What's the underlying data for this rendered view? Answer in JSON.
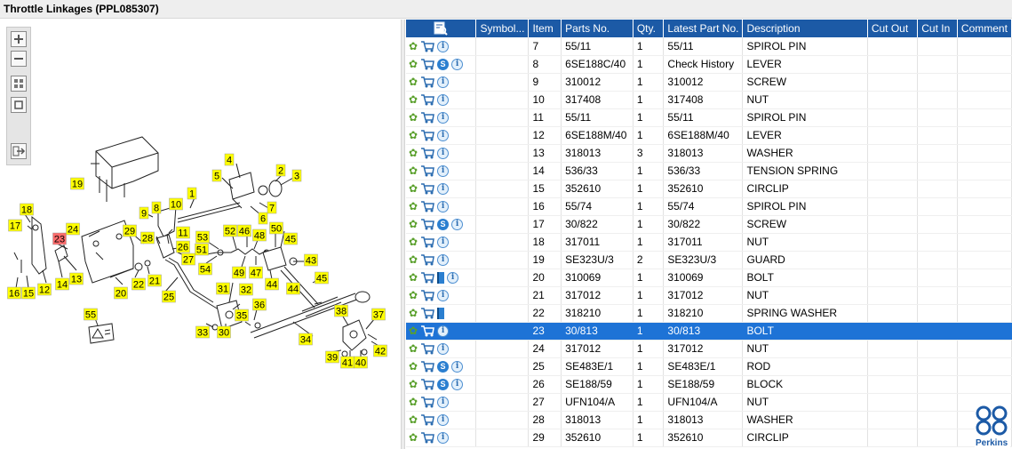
{
  "window": {
    "title": "Throttle Linkages (PPL085307)"
  },
  "toolbar": {
    "zoom_in": "plus-magnifier-icon",
    "zoom_out": "minus-magnifier-icon",
    "fit": "fit-window-icon",
    "actual": "actual-size-icon",
    "export": "export-icon"
  },
  "callouts": [
    {
      "label": "1"
    },
    {
      "label": "2"
    },
    {
      "label": "3"
    },
    {
      "label": "4"
    },
    {
      "label": "5"
    },
    {
      "label": "6"
    },
    {
      "label": "7"
    },
    {
      "label": "8"
    },
    {
      "label": "9"
    },
    {
      "label": "10"
    },
    {
      "label": "11"
    },
    {
      "label": "12"
    },
    {
      "label": "13"
    },
    {
      "label": "14"
    },
    {
      "label": "15"
    },
    {
      "label": "16"
    },
    {
      "label": "17"
    },
    {
      "label": "18"
    },
    {
      "label": "19"
    },
    {
      "label": "20"
    },
    {
      "label": "21"
    },
    {
      "label": "22"
    },
    {
      "label": "23",
      "highlight": true
    },
    {
      "label": "24"
    },
    {
      "label": "25"
    },
    {
      "label": "26"
    },
    {
      "label": "27"
    },
    {
      "label": "28"
    },
    {
      "label": "29"
    },
    {
      "label": "30"
    },
    {
      "label": "31"
    },
    {
      "label": "32"
    },
    {
      "label": "33"
    },
    {
      "label": "34"
    },
    {
      "label": "35"
    },
    {
      "label": "36"
    },
    {
      "label": "37"
    },
    {
      "label": "38"
    },
    {
      "label": "39"
    },
    {
      "label": "40"
    },
    {
      "label": "41"
    },
    {
      "label": "42"
    },
    {
      "label": "43"
    },
    {
      "label": "44"
    },
    {
      "label": "44"
    },
    {
      "label": "45"
    },
    {
      "label": "45"
    },
    {
      "label": "46"
    },
    {
      "label": "47"
    },
    {
      "label": "48"
    },
    {
      "label": "49"
    },
    {
      "label": "50"
    },
    {
      "label": "51"
    },
    {
      "label": "52"
    },
    {
      "label": "53"
    },
    {
      "label": "54"
    },
    {
      "label": "55"
    }
  ],
  "colors": {
    "header_bg": "#1c5aa6",
    "selected_row": "#1e73d6",
    "callout_fill": "#ffff00",
    "callout_highlight": "#ff6b6b"
  },
  "grid": {
    "header_icon": "search-list-icon",
    "columns": [
      "Symbol...",
      "Item",
      "Parts No.",
      "Qty.",
      "Latest Part No.",
      "Description",
      "Cut Out",
      "Cut In",
      "Comment"
    ],
    "rows": [
      {
        "icons": [
          "gear",
          "cart",
          "info"
        ],
        "item": "7",
        "part": "55/11",
        "qty": "1",
        "latest": "55/11",
        "desc": "SPIROL PIN"
      },
      {
        "icons": [
          "gear",
          "cart",
          "s",
          "info"
        ],
        "item": "8",
        "part": "6SE188C/40",
        "qty": "1",
        "latest": "Check History",
        "desc": "LEVER"
      },
      {
        "icons": [
          "gear",
          "cart",
          "info"
        ],
        "item": "9",
        "part": "310012",
        "qty": "1",
        "latest": "310012",
        "desc": "SCREW"
      },
      {
        "icons": [
          "gear",
          "cart",
          "info"
        ],
        "item": "10",
        "part": "317408",
        "qty": "1",
        "latest": "317408",
        "desc": "NUT"
      },
      {
        "icons": [
          "gear",
          "cart",
          "info"
        ],
        "item": "11",
        "part": "55/11",
        "qty": "1",
        "latest": "55/11",
        "desc": "SPIROL PIN"
      },
      {
        "icons": [
          "gear",
          "cart",
          "info"
        ],
        "item": "12",
        "part": "6SE188M/40",
        "qty": "1",
        "latest": "6SE188M/40",
        "desc": "LEVER"
      },
      {
        "icons": [
          "gear",
          "cart",
          "info"
        ],
        "item": "13",
        "part": "318013",
        "qty": "3",
        "latest": "318013",
        "desc": "WASHER"
      },
      {
        "icons": [
          "gear",
          "cart",
          "info"
        ],
        "item": "14",
        "part": "536/33",
        "qty": "1",
        "latest": "536/33",
        "desc": "TENSION SPRING"
      },
      {
        "icons": [
          "gear",
          "cart",
          "info"
        ],
        "item": "15",
        "part": "352610",
        "qty": "1",
        "latest": "352610",
        "desc": "CIRCLIP"
      },
      {
        "icons": [
          "gear",
          "cart",
          "info"
        ],
        "item": "16",
        "part": "55/74",
        "qty": "1",
        "latest": "55/74",
        "desc": "SPIROL PIN"
      },
      {
        "icons": [
          "gear",
          "cart",
          "s",
          "info"
        ],
        "item": "17",
        "part": "30/822",
        "qty": "1",
        "latest": "30/822",
        "desc": "SCREW"
      },
      {
        "icons": [
          "gear",
          "cart",
          "info"
        ],
        "item": "18",
        "part": "317011",
        "qty": "1",
        "latest": "317011",
        "desc": "NUT"
      },
      {
        "icons": [
          "gear",
          "cart",
          "info"
        ],
        "item": "19",
        "part": "SE323U/3",
        "qty": "2",
        "latest": "SE323U/3",
        "desc": "GUARD"
      },
      {
        "icons": [
          "gear",
          "cart",
          "book",
          "info"
        ],
        "item": "20",
        "part": "310069",
        "qty": "1",
        "latest": "310069",
        "desc": "BOLT"
      },
      {
        "icons": [
          "gear",
          "cart",
          "info"
        ],
        "item": "21",
        "part": "317012",
        "qty": "1",
        "latest": "317012",
        "desc": "NUT"
      },
      {
        "icons": [
          "gear",
          "cart",
          "book"
        ],
        "item": "22",
        "part": "318210",
        "qty": "1",
        "latest": "318210",
        "desc": "SPRING WASHER"
      },
      {
        "icons": [
          "gear",
          "cart",
          "info"
        ],
        "item": "23",
        "part": "30/813",
        "qty": "1",
        "latest": "30/813",
        "desc": "BOLT",
        "selected": true
      },
      {
        "icons": [
          "gear",
          "cart",
          "info"
        ],
        "item": "24",
        "part": "317012",
        "qty": "1",
        "latest": "317012",
        "desc": "NUT"
      },
      {
        "icons": [
          "gear",
          "cart",
          "s",
          "info"
        ],
        "item": "25",
        "part": "SE483E/1",
        "qty": "1",
        "latest": "SE483E/1",
        "desc": "ROD"
      },
      {
        "icons": [
          "gear",
          "cart",
          "s",
          "info"
        ],
        "item": "26",
        "part": "SE188/59",
        "qty": "1",
        "latest": "SE188/59",
        "desc": "BLOCK"
      },
      {
        "icons": [
          "gear",
          "cart",
          "info"
        ],
        "item": "27",
        "part": "UFN104/A",
        "qty": "1",
        "latest": "UFN104/A",
        "desc": "NUT"
      },
      {
        "icons": [
          "gear",
          "cart",
          "info"
        ],
        "item": "28",
        "part": "318013",
        "qty": "1",
        "latest": "318013",
        "desc": "WASHER"
      },
      {
        "icons": [
          "gear",
          "cart",
          "info"
        ],
        "item": "29",
        "part": "352610",
        "qty": "1",
        "latest": "352610",
        "desc": "CIRCLIP"
      }
    ]
  },
  "logo": {
    "text": "Perkins"
  }
}
